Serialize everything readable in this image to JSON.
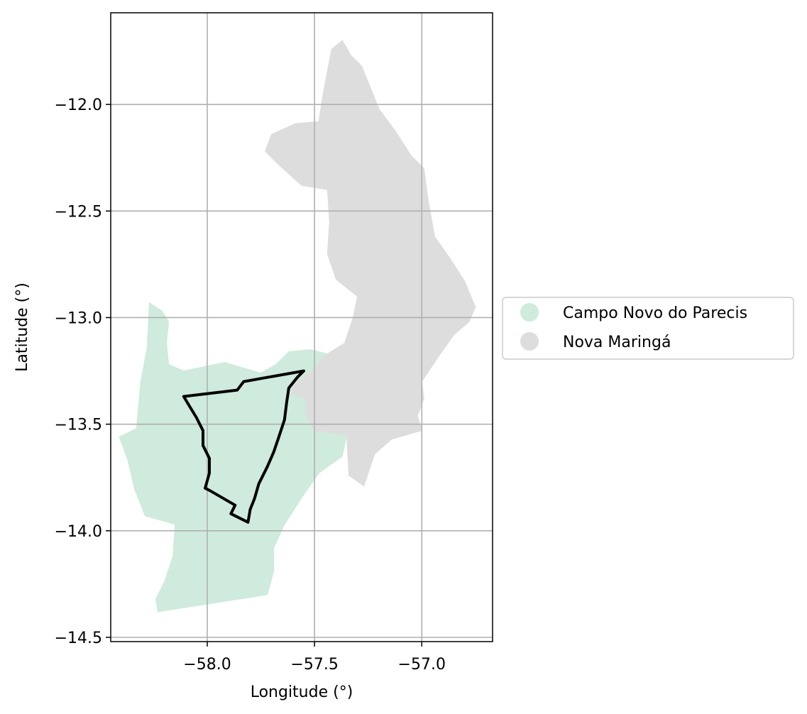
{
  "chart_data": {
    "type": "map",
    "xlabel": "Longitude (°)",
    "ylabel": "Latitude (°)",
    "xlim": [
      -58.45,
      -56.67
    ],
    "ylim": [
      -14.52,
      -11.57
    ],
    "grid": true,
    "x_ticks": [
      {
        "value": -58.0,
        "label": "−58.0"
      },
      {
        "value": -57.5,
        "label": "−57.5"
      },
      {
        "value": -57.0,
        "label": "−57.0"
      }
    ],
    "y_ticks": [
      {
        "value": -12.0,
        "label": "−12.0"
      },
      {
        "value": -12.5,
        "label": "−12.5"
      },
      {
        "value": -13.0,
        "label": "−13.0"
      },
      {
        "value": -13.5,
        "label": "−13.5"
      },
      {
        "value": -14.0,
        "label": "−14.0"
      },
      {
        "value": -14.5,
        "label": "−14.5"
      }
    ],
    "legend_position": "right",
    "legend": [
      {
        "label": "Campo Novo do Parecis",
        "color": "#ceebdd"
      },
      {
        "label": "Nova Maringá",
        "color": "#dddddd"
      }
    ],
    "regions": [
      {
        "name": "Campo Novo do Parecis",
        "color": "#ceebdd",
        "coords": [
          [
            -58.27,
            -12.93
          ],
          [
            -58.21,
            -12.97
          ],
          [
            -58.18,
            -13.02
          ],
          [
            -58.19,
            -13.12
          ],
          [
            -58.18,
            -13.22
          ],
          [
            -58.11,
            -13.25
          ],
          [
            -57.92,
            -13.21
          ],
          [
            -57.75,
            -13.26
          ],
          [
            -57.68,
            -13.22
          ],
          [
            -57.62,
            -13.16
          ],
          [
            -57.52,
            -13.15
          ],
          [
            -57.44,
            -13.17
          ],
          [
            -57.52,
            -13.26
          ],
          [
            -57.6,
            -13.31
          ],
          [
            -57.61,
            -13.36
          ],
          [
            -57.54,
            -13.38
          ],
          [
            -57.54,
            -13.45
          ],
          [
            -57.5,
            -13.53
          ],
          [
            -57.35,
            -13.55
          ],
          [
            -57.37,
            -13.65
          ],
          [
            -57.48,
            -13.73
          ],
          [
            -57.55,
            -13.83
          ],
          [
            -57.64,
            -13.97
          ],
          [
            -57.69,
            -14.08
          ],
          [
            -57.69,
            -14.19
          ],
          [
            -57.72,
            -14.3
          ],
          [
            -58.23,
            -14.38
          ],
          [
            -58.24,
            -14.32
          ],
          [
            -58.2,
            -14.24
          ],
          [
            -58.16,
            -14.12
          ],
          [
            -58.15,
            -13.97
          ],
          [
            -58.29,
            -13.93
          ],
          [
            -58.34,
            -13.8
          ],
          [
            -58.37,
            -13.67
          ],
          [
            -58.41,
            -13.56
          ],
          [
            -58.33,
            -13.52
          ],
          [
            -58.31,
            -13.3
          ],
          [
            -58.28,
            -13.14
          ]
        ]
      },
      {
        "name": "Nova Maringá",
        "color": "#dddddd",
        "coords": [
          [
            -57.42,
            -11.74
          ],
          [
            -57.37,
            -11.7
          ],
          [
            -57.33,
            -11.77
          ],
          [
            -57.28,
            -11.82
          ],
          [
            -57.24,
            -11.92
          ],
          [
            -57.2,
            -12.02
          ],
          [
            -57.12,
            -12.13
          ],
          [
            -57.05,
            -12.24
          ],
          [
            -56.99,
            -12.3
          ],
          [
            -56.97,
            -12.45
          ],
          [
            -56.94,
            -12.62
          ],
          [
            -56.87,
            -12.72
          ],
          [
            -56.8,
            -12.83
          ],
          [
            -56.75,
            -12.95
          ],
          [
            -56.78,
            -13.02
          ],
          [
            -56.85,
            -13.08
          ],
          [
            -56.92,
            -13.18
          ],
          [
            -57.0,
            -13.3
          ],
          [
            -56.99,
            -13.38
          ],
          [
            -57.02,
            -13.46
          ],
          [
            -57.0,
            -13.53
          ],
          [
            -57.14,
            -13.57
          ],
          [
            -57.22,
            -13.64
          ],
          [
            -57.27,
            -13.79
          ],
          [
            -57.34,
            -13.74
          ],
          [
            -57.35,
            -13.55
          ],
          [
            -57.5,
            -13.53
          ],
          [
            -57.54,
            -13.45
          ],
          [
            -57.54,
            -13.38
          ],
          [
            -57.61,
            -13.36
          ],
          [
            -57.6,
            -13.31
          ],
          [
            -57.52,
            -13.26
          ],
          [
            -57.44,
            -13.17
          ],
          [
            -57.36,
            -13.12
          ],
          [
            -57.32,
            -13.0
          ],
          [
            -57.3,
            -12.9
          ],
          [
            -57.4,
            -12.82
          ],
          [
            -57.44,
            -12.7
          ],
          [
            -57.43,
            -12.55
          ],
          [
            -57.44,
            -12.4
          ],
          [
            -57.56,
            -12.38
          ],
          [
            -57.67,
            -12.28
          ],
          [
            -57.73,
            -12.22
          ],
          [
            -57.7,
            -12.14
          ],
          [
            -57.59,
            -12.09
          ],
          [
            -57.48,
            -12.08
          ],
          [
            -57.46,
            -11.95
          ]
        ]
      }
    ],
    "outline": {
      "name": "study-area",
      "color": "#000000",
      "coords": [
        [
          -58.11,
          -13.37
        ],
        [
          -57.86,
          -13.34
        ],
        [
          -57.83,
          -13.3
        ],
        [
          -57.55,
          -13.25
        ],
        [
          -57.58,
          -13.28
        ],
        [
          -57.62,
          -13.33
        ],
        [
          -57.63,
          -13.4
        ],
        [
          -57.64,
          -13.48
        ],
        [
          -57.67,
          -13.57
        ],
        [
          -57.69,
          -13.63
        ],
        [
          -57.72,
          -13.7
        ],
        [
          -57.76,
          -13.78
        ],
        [
          -57.78,
          -13.85
        ],
        [
          -57.8,
          -13.9
        ],
        [
          -57.81,
          -13.96
        ],
        [
          -57.89,
          -13.92
        ],
        [
          -57.87,
          -13.88
        ],
        [
          -57.99,
          -13.81
        ],
        [
          -58.01,
          -13.8
        ],
        [
          -57.99,
          -13.73
        ],
        [
          -57.99,
          -13.66
        ],
        [
          -58.02,
          -13.6
        ],
        [
          -58.02,
          -13.53
        ],
        [
          -58.05,
          -13.47
        ],
        [
          -58.08,
          -13.42
        ]
      ]
    }
  }
}
